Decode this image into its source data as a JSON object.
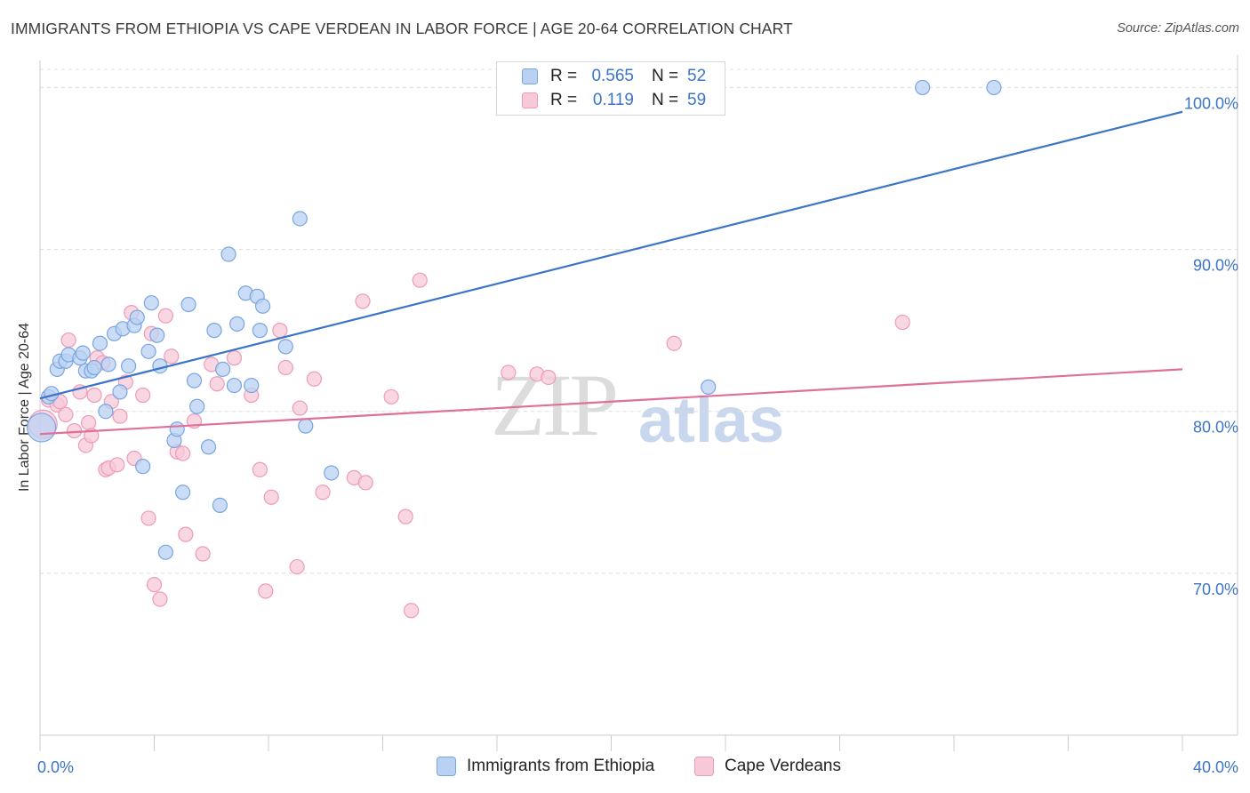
{
  "title": "IMMIGRANTS FROM ETHIOPIA VS CAPE VERDEAN IN LABOR FORCE | AGE 20-64 CORRELATION CHART",
  "source": "Source: ZipAtlas.com",
  "watermark": {
    "zip": "ZIP",
    "atlas": "atlas"
  },
  "colors": {
    "blue": "#3b74c8",
    "blue_fill": "#b9d2f3",
    "blue_stroke": "#7aa5e0",
    "pink": "#e0709a",
    "pink_fill": "#f7c9d8",
    "pink_stroke": "#ee9bb7",
    "grid": "#dddddd",
    "axis": "#cccccc"
  },
  "legend": {
    "rows": [
      {
        "r_label": "R =",
        "r_value": "0.565",
        "n_label": "N =",
        "n_value": "52"
      },
      {
        "r_label": "R =",
        "r_value": "0.119",
        "n_label": "N =",
        "n_value": "59"
      }
    ]
  },
  "chart_data": {
    "type": "scatter",
    "title": "IMMIGRANTS FROM ETHIOPIA VS CAPE VERDEAN IN LABOR FORCE | AGE 20-64 CORRELATION CHART",
    "xlabel": "",
    "ylabel": "In Labor Force | Age 20-64",
    "xlim": [
      0,
      40
    ],
    "ylim": [
      60,
      102
    ],
    "x_tick_labels": [
      "0.0%",
      "40.0%"
    ],
    "y_ticks": [
      70,
      80,
      90,
      100
    ],
    "y_tick_labels": [
      "70.0%",
      "80.0%",
      "90.0%",
      "100.0%"
    ],
    "grid": true,
    "legend_placement": "bottom",
    "series": [
      {
        "name": "Immigrants from Ethiopia",
        "color": "#3b74c8",
        "trend": {
          "x": [
            0,
            40
          ],
          "y": [
            80.8,
            98.5
          ]
        },
        "points": [
          [
            0.05,
            79.0
          ],
          [
            0.3,
            80.9
          ],
          [
            0.4,
            81.1
          ],
          [
            0.6,
            82.6
          ],
          [
            0.7,
            83.1
          ],
          [
            0.9,
            83.1
          ],
          [
            1.0,
            83.5
          ],
          [
            1.4,
            83.3
          ],
          [
            1.5,
            83.6
          ],
          [
            1.6,
            82.5
          ],
          [
            1.8,
            82.5
          ],
          [
            1.9,
            82.7
          ],
          [
            2.1,
            84.2
          ],
          [
            2.3,
            80.0
          ],
          [
            2.4,
            82.9
          ],
          [
            2.6,
            84.8
          ],
          [
            2.8,
            81.2
          ],
          [
            2.9,
            85.1
          ],
          [
            3.1,
            82.8
          ],
          [
            3.3,
            85.3
          ],
          [
            3.4,
            85.8
          ],
          [
            3.6,
            76.6
          ],
          [
            3.8,
            83.7
          ],
          [
            3.9,
            86.7
          ],
          [
            4.1,
            84.7
          ],
          [
            4.2,
            82.8
          ],
          [
            4.4,
            71.3
          ],
          [
            4.7,
            78.2
          ],
          [
            4.8,
            78.9
          ],
          [
            5.0,
            75.0
          ],
          [
            5.2,
            86.6
          ],
          [
            5.4,
            81.9
          ],
          [
            5.5,
            80.3
          ],
          [
            5.9,
            77.8
          ],
          [
            6.1,
            85.0
          ],
          [
            6.3,
            74.2
          ],
          [
            6.4,
            82.6
          ],
          [
            6.6,
            89.7
          ],
          [
            6.8,
            81.6
          ],
          [
            6.9,
            85.4
          ],
          [
            7.2,
            87.3
          ],
          [
            7.4,
            81.6
          ],
          [
            7.6,
            87.1
          ],
          [
            7.7,
            85.0
          ],
          [
            7.8,
            86.5
          ],
          [
            8.6,
            84.0
          ],
          [
            9.1,
            91.9
          ],
          [
            9.3,
            79.1
          ],
          [
            10.2,
            76.2
          ],
          [
            23.4,
            81.5
          ],
          [
            30.9,
            100.0
          ],
          [
            33.4,
            100.0
          ]
        ]
      },
      {
        "name": "Cape Verdeans",
        "color": "#e0709a",
        "trend": {
          "x": [
            0,
            40
          ],
          "y": [
            78.6,
            82.6
          ]
        },
        "points": [
          [
            0.1,
            79.2
          ],
          [
            0.3,
            80.7
          ],
          [
            0.6,
            80.4
          ],
          [
            0.7,
            80.6
          ],
          [
            0.9,
            79.8
          ],
          [
            1.0,
            84.4
          ],
          [
            1.2,
            78.8
          ],
          [
            1.4,
            81.2
          ],
          [
            1.6,
            77.9
          ],
          [
            1.7,
            79.3
          ],
          [
            1.8,
            78.5
          ],
          [
            1.9,
            81.0
          ],
          [
            2.0,
            83.3
          ],
          [
            2.2,
            83.0
          ],
          [
            2.3,
            76.4
          ],
          [
            2.4,
            76.5
          ],
          [
            2.5,
            80.6
          ],
          [
            2.7,
            76.7
          ],
          [
            2.8,
            79.7
          ],
          [
            3.0,
            81.8
          ],
          [
            3.2,
            86.1
          ],
          [
            3.3,
            77.1
          ],
          [
            3.6,
            81.0
          ],
          [
            3.8,
            73.4
          ],
          [
            3.9,
            84.8
          ],
          [
            4.0,
            69.3
          ],
          [
            4.2,
            68.4
          ],
          [
            4.4,
            85.9
          ],
          [
            4.6,
            83.4
          ],
          [
            4.8,
            77.5
          ],
          [
            5.0,
            77.4
          ],
          [
            5.1,
            72.4
          ],
          [
            5.4,
            79.4
          ],
          [
            5.7,
            71.2
          ],
          [
            6.0,
            82.9
          ],
          [
            6.2,
            81.7
          ],
          [
            6.8,
            83.3
          ],
          [
            7.4,
            81.0
          ],
          [
            7.7,
            76.4
          ],
          [
            7.9,
            68.9
          ],
          [
            8.1,
            74.7
          ],
          [
            8.4,
            85.0
          ],
          [
            8.6,
            82.7
          ],
          [
            9.0,
            70.4
          ],
          [
            9.1,
            80.2
          ],
          [
            9.6,
            82.0
          ],
          [
            9.9,
            75.0
          ],
          [
            11.0,
            75.9
          ],
          [
            11.3,
            86.8
          ],
          [
            11.4,
            75.6
          ],
          [
            12.3,
            80.9
          ],
          [
            12.8,
            73.5
          ],
          [
            13.0,
            67.7
          ],
          [
            13.3,
            88.1
          ],
          [
            16.4,
            82.4
          ],
          [
            17.4,
            82.3
          ],
          [
            17.8,
            82.1
          ],
          [
            22.2,
            84.2
          ],
          [
            30.2,
            85.5
          ]
        ]
      }
    ]
  }
}
